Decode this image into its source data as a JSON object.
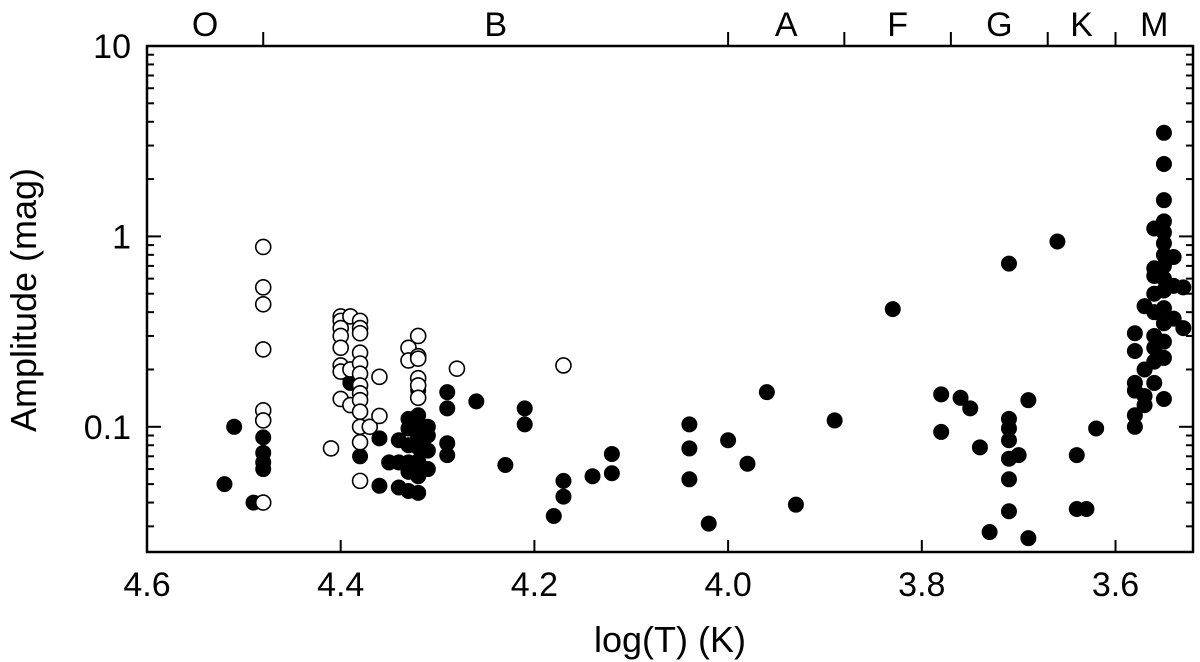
{
  "chart_data": {
    "type": "scatter",
    "xlabel": "log(T) (K)",
    "ylabel": "Amplitude (mag)",
    "xlim": [
      4.6,
      3.52
    ],
    "x_reversed": true,
    "ylim": [
      0.022,
      10
    ],
    "ylog": true,
    "grid": false,
    "x_ticks": [
      {
        "value": 4.6,
        "label": "4.6"
      },
      {
        "value": 4.4,
        "label": "4.4"
      },
      {
        "value": 4.2,
        "label": "4.2"
      },
      {
        "value": 4.0,
        "label": "4.0"
      },
      {
        "value": 3.8,
        "label": "3.8"
      },
      {
        "value": 3.6,
        "label": "3.6"
      }
    ],
    "y_ticks": [
      {
        "value": 10,
        "label": "10"
      },
      {
        "value": 1,
        "label": "1"
      },
      {
        "value": 0.1,
        "label": "0.1"
      }
    ],
    "spectral_classes": [
      {
        "label": "O",
        "from": 4.6,
        "to": 4.48
      },
      {
        "label": "B",
        "from": 4.48,
        "to": 4.0
      },
      {
        "label": "A",
        "from": 4.0,
        "to": 3.88
      },
      {
        "label": "F",
        "from": 3.88,
        "to": 3.77
      },
      {
        "label": "G",
        "from": 3.77,
        "to": 3.67
      },
      {
        "label": "K",
        "from": 3.67,
        "to": 3.6
      },
      {
        "label": "M",
        "from": 3.6,
        "to": 3.52
      }
    ],
    "series": [
      {
        "style": "filled",
        "color": "#000000",
        "points": [
          [
            4.52,
            0.05
          ],
          [
            4.51,
            0.1
          ],
          [
            4.49,
            0.04
          ],
          [
            4.48,
            0.088
          ],
          [
            4.48,
            0.073
          ],
          [
            4.48,
            0.065
          ],
          [
            4.48,
            0.06
          ],
          [
            4.39,
            0.18
          ],
          [
            4.39,
            0.17
          ],
          [
            4.38,
            0.07
          ],
          [
            4.36,
            0.087
          ],
          [
            4.36,
            0.049
          ],
          [
            4.35,
            0.065
          ],
          [
            4.34,
            0.085
          ],
          [
            4.34,
            0.065
          ],
          [
            4.34,
            0.048
          ],
          [
            4.33,
            0.11
          ],
          [
            4.33,
            0.098
          ],
          [
            4.33,
            0.08
          ],
          [
            4.33,
            0.065
          ],
          [
            4.33,
            0.058
          ],
          [
            4.33,
            0.046
          ],
          [
            4.32,
            0.155
          ],
          [
            4.32,
            0.115
          ],
          [
            4.32,
            0.1
          ],
          [
            4.32,
            0.088
          ],
          [
            4.32,
            0.078
          ],
          [
            4.32,
            0.066
          ],
          [
            4.32,
            0.055
          ],
          [
            4.32,
            0.045
          ],
          [
            4.31,
            0.1
          ],
          [
            4.31,
            0.09
          ],
          [
            4.31,
            0.075
          ],
          [
            4.31,
            0.06
          ],
          [
            4.29,
            0.152
          ],
          [
            4.29,
            0.125
          ],
          [
            4.29,
            0.082
          ],
          [
            4.29,
            0.071
          ],
          [
            4.26,
            0.136
          ],
          [
            4.23,
            0.063
          ],
          [
            4.21,
            0.125
          ],
          [
            4.21,
            0.103
          ],
          [
            4.18,
            0.034
          ],
          [
            4.17,
            0.052
          ],
          [
            4.17,
            0.043
          ],
          [
            4.14,
            0.055
          ],
          [
            4.12,
            0.057
          ],
          [
            4.12,
            0.072
          ],
          [
            4.04,
            0.103
          ],
          [
            4.04,
            0.077
          ],
          [
            4.04,
            0.053
          ],
          [
            4.02,
            0.031
          ],
          [
            4.0,
            0.085
          ],
          [
            3.98,
            0.064
          ],
          [
            3.96,
            0.152
          ],
          [
            3.93,
            0.039
          ],
          [
            3.89,
            0.108
          ],
          [
            3.83,
            0.415
          ],
          [
            3.78,
            0.148
          ],
          [
            3.78,
            0.094
          ],
          [
            3.76,
            0.142
          ],
          [
            3.75,
            0.125
          ],
          [
            3.74,
            0.078
          ],
          [
            3.73,
            0.028
          ],
          [
            3.71,
            0.72
          ],
          [
            3.71,
            0.11
          ],
          [
            3.71,
            0.098
          ],
          [
            3.71,
            0.085
          ],
          [
            3.71,
            0.068
          ],
          [
            3.71,
            0.053
          ],
          [
            3.71,
            0.036
          ],
          [
            3.7,
            0.071
          ],
          [
            3.69,
            0.138
          ],
          [
            3.69,
            0.026
          ],
          [
            3.66,
            0.94
          ],
          [
            3.64,
            0.037
          ],
          [
            3.64,
            0.071
          ],
          [
            3.63,
            0.037
          ],
          [
            3.62,
            0.098
          ],
          [
            3.58,
            0.31
          ],
          [
            3.58,
            0.25
          ],
          [
            3.58,
            0.17
          ],
          [
            3.58,
            0.155
          ],
          [
            3.58,
            0.115
          ],
          [
            3.58,
            0.1
          ],
          [
            3.57,
            0.43
          ],
          [
            3.57,
            0.2
          ],
          [
            3.57,
            0.145
          ],
          [
            3.57,
            0.13
          ],
          [
            3.56,
            1.1
          ],
          [
            3.56,
            0.68
          ],
          [
            3.56,
            0.62
          ],
          [
            3.56,
            0.5
          ],
          [
            3.56,
            0.4
          ],
          [
            3.56,
            0.3
          ],
          [
            3.56,
            0.26
          ],
          [
            3.56,
            0.22
          ],
          [
            3.56,
            0.17
          ],
          [
            3.55,
            3.5
          ],
          [
            3.55,
            2.4
          ],
          [
            3.55,
            1.55
          ],
          [
            3.55,
            1.2
          ],
          [
            3.55,
            1.05
          ],
          [
            3.55,
            0.92
          ],
          [
            3.55,
            0.8
          ],
          [
            3.55,
            0.7
          ],
          [
            3.55,
            0.6
          ],
          [
            3.55,
            0.52
          ],
          [
            3.55,
            0.42
          ],
          [
            3.55,
            0.35
          ],
          [
            3.55,
            0.28
          ],
          [
            3.55,
            0.23
          ],
          [
            3.55,
            0.14
          ],
          [
            3.54,
            0.78
          ],
          [
            3.54,
            0.55
          ],
          [
            3.54,
            0.37
          ],
          [
            3.53,
            0.54
          ],
          [
            3.53,
            0.33
          ]
        ]
      },
      {
        "style": "open",
        "color": "#000000",
        "points": [
          [
            4.48,
            0.88
          ],
          [
            4.48,
            0.54
          ],
          [
            4.48,
            0.44
          ],
          [
            4.48,
            0.255
          ],
          [
            4.48,
            0.122
          ],
          [
            4.48,
            0.108
          ],
          [
            4.48,
            0.04
          ],
          [
            4.41,
            0.077
          ],
          [
            4.4,
            0.38
          ],
          [
            4.4,
            0.36
          ],
          [
            4.4,
            0.33
          ],
          [
            4.4,
            0.3
          ],
          [
            4.4,
            0.26
          ],
          [
            4.4,
            0.21
          ],
          [
            4.4,
            0.195
          ],
          [
            4.4,
            0.14
          ],
          [
            4.39,
            0.38
          ],
          [
            4.39,
            0.2
          ],
          [
            4.39,
            0.13
          ],
          [
            4.38,
            0.36
          ],
          [
            4.38,
            0.33
          ],
          [
            4.38,
            0.31
          ],
          [
            4.38,
            0.245
          ],
          [
            4.38,
            0.215
          ],
          [
            4.38,
            0.19
          ],
          [
            4.38,
            0.165
          ],
          [
            4.38,
            0.15
          ],
          [
            4.38,
            0.138
          ],
          [
            4.38,
            0.12
          ],
          [
            4.38,
            0.1
          ],
          [
            4.38,
            0.083
          ],
          [
            4.38,
            0.052
          ],
          [
            4.37,
            0.1
          ],
          [
            4.36,
            0.183
          ],
          [
            4.36,
            0.114
          ],
          [
            4.33,
            0.26
          ],
          [
            4.33,
            0.223
          ],
          [
            4.32,
            0.3
          ],
          [
            4.32,
            0.235
          ],
          [
            4.32,
            0.228
          ],
          [
            4.32,
            0.18
          ],
          [
            4.32,
            0.165
          ],
          [
            4.32,
            0.142
          ],
          [
            4.28,
            0.202
          ],
          [
            4.17,
            0.21
          ]
        ]
      }
    ]
  }
}
